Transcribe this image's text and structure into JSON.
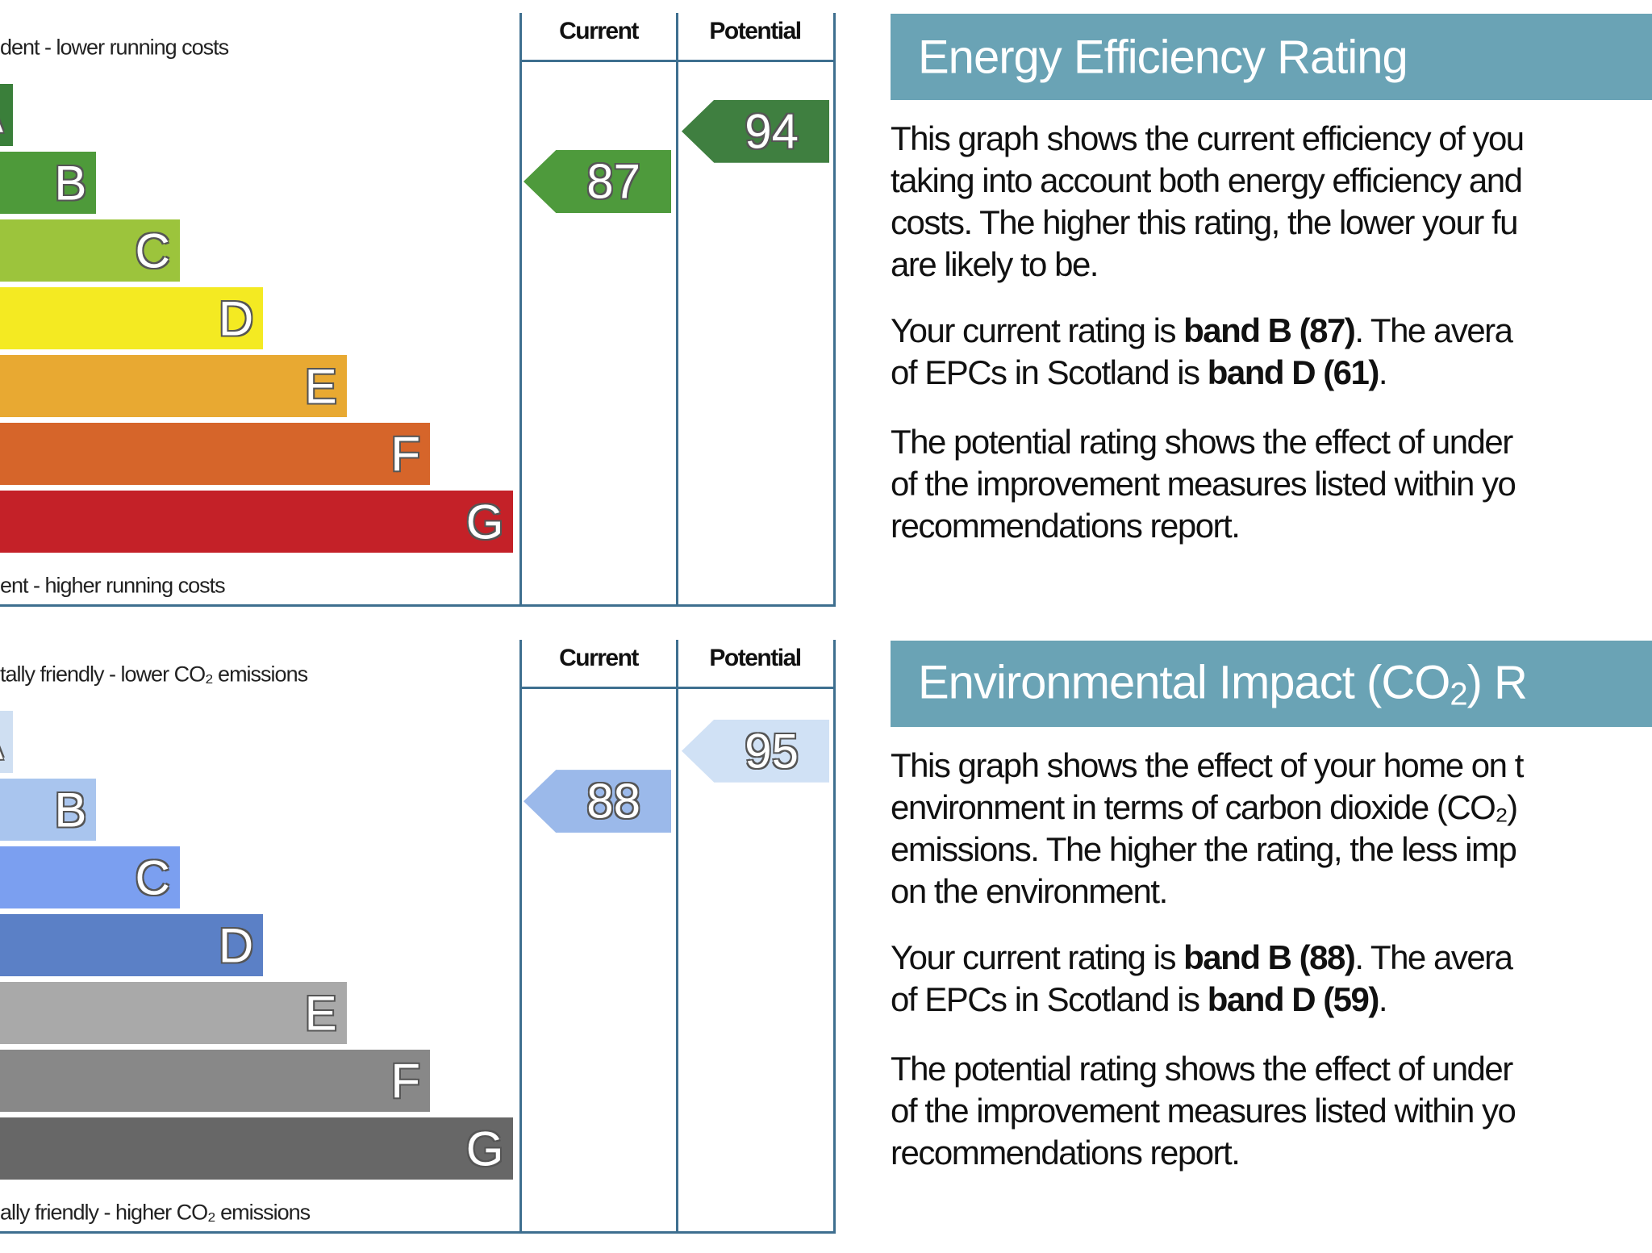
{
  "chart_data": [
    {
      "type": "bar",
      "title": "Energy Efficiency Rating",
      "top_label": "dent - lower running costs",
      "bottom_label": "ent - higher running costs",
      "columns": [
        "Current",
        "Potential"
      ],
      "bands": [
        "A",
        "B",
        "C",
        "D",
        "E",
        "F",
        "G"
      ],
      "band_colors": [
        "#3a7f3a",
        "#4e9a3a",
        "#9cc43c",
        "#f4ea22",
        "#e8a932",
        "#d6652a",
        "#c42128"
      ],
      "current": {
        "value": 87,
        "color": "#4e9a3c"
      },
      "potential": {
        "value": 94,
        "color": "#3f7f40"
      }
    },
    {
      "type": "bar",
      "title": "Environmental Impact (CO2) R",
      "top_label": "tally friendly - lower CO₂ emissions",
      "bottom_label": "ally friendly - higher CO₂ emissions",
      "columns": [
        "Current",
        "Potential"
      ],
      "bands": [
        "A",
        "B",
        "C",
        "D",
        "E",
        "F",
        "G"
      ],
      "band_colors": [
        "#cfdff2",
        "#a9c5ee",
        "#7b9ff0",
        "#5b80c6",
        "#a9a9a9",
        "#888888",
        "#676767"
      ],
      "current": {
        "value": 88,
        "color": "#9bb9ea"
      },
      "potential": {
        "value": 95,
        "color": "#d0e1f5"
      }
    }
  ],
  "panels": [
    {
      "heading": "Energy Efficiency Rating",
      "heading_sub": "",
      "heading_tail": "",
      "p1": [
        "This graph shows the current efficiency of you",
        "taking into account both energy efficiency and",
        "costs. The higher this rating, the lower your fu",
        "are likely to be."
      ],
      "p2": [
        {
          "pre": "Your current rating is ",
          "bold": "band B (87)",
          "post": ". The avera"
        },
        {
          "pre": "of EPCs in Scotland is ",
          "bold": "band D (61)",
          "post": "."
        }
      ],
      "p3": [
        "The potential rating shows the effect of under",
        "of the improvement measures listed within yo",
        "recommendations report."
      ]
    },
    {
      "heading": "Environmental Impact (CO",
      "heading_sub": "2",
      "heading_tail": ") R",
      "p1": [
        "This graph shows the effect of your home on t",
        "environment in terms of carbon dioxide (CO₂)",
        "emissions. The higher the rating, the less imp",
        "on the environment."
      ],
      "p2": [
        {
          "pre": "Your current rating is ",
          "bold": "band B (88)",
          "post": ". The avera"
        },
        {
          "pre": "of EPCs in Scotland is ",
          "bold": "band D (59)",
          "post": "."
        }
      ],
      "p3": [
        "The potential rating shows the effect of under",
        "of the improvement measures listed within yo",
        "recommendations report."
      ]
    }
  ]
}
